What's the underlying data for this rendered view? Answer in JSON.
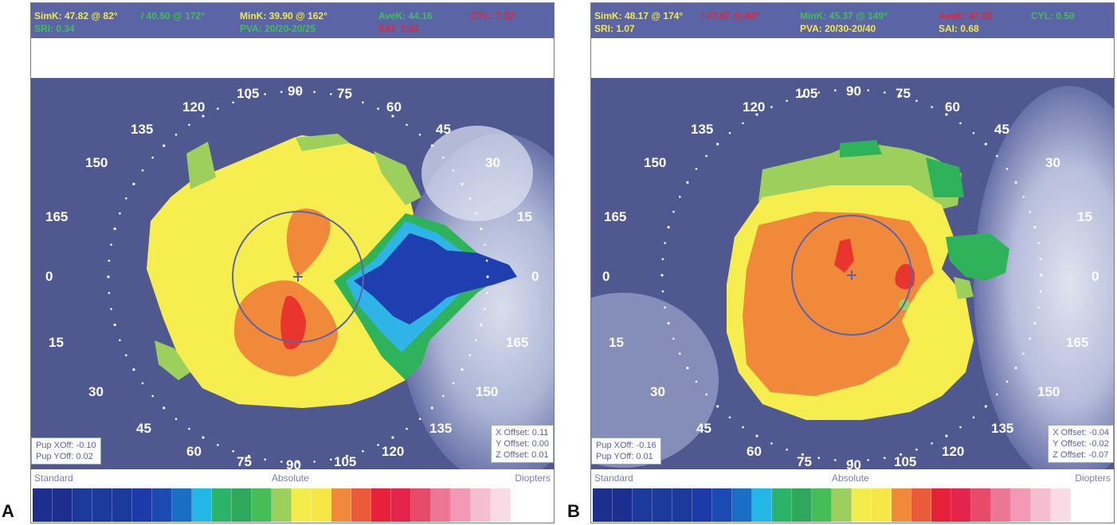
{
  "panels": [
    {
      "letter": "A",
      "header": {
        "simk": "SimK: 47.82 @ 82°",
        "simk_steep": "/ 40.50 @ 172°",
        "mink": "MinK: 39.90 @ 162°",
        "avek": "AveK: 44.16",
        "cyl": "CYL: 7.32",
        "sri": "SRI: 0.34",
        "pva": "PVA: 20/20-20/25",
        "sai": "SAI: 1.54"
      },
      "degree_labels": [
        "0",
        "15",
        "30",
        "45",
        "60",
        "75",
        "90",
        "105",
        "120",
        "135",
        "150",
        "165"
      ],
      "pupil_offset": {
        "x": "Pup XOff: -0.10",
        "y": "Pup YOff: 0.02"
      },
      "offsets": {
        "x": "X Offset: 0.11",
        "y": "Y Offset: 0.00",
        "z": "Z Offset: 0.01"
      },
      "scale": {
        "left": "Standard",
        "center": "Absolute",
        "right": "Diopters"
      }
    },
    {
      "letter": "B",
      "header": {
        "simk": "SimK: 48.17 @ 174°",
        "simk_steep": "/ 47.67 @ 84°",
        "mink": "MinK: 45.37 @ 149°",
        "avek": "AveK: 47.92",
        "cyl": "CYL: 0.50",
        "sri": "SRI: 1.07",
        "pva": "PVA: 20/30-20/40",
        "sai": "SAI: 0.68"
      },
      "degree_labels": [
        "0",
        "15",
        "30",
        "45",
        "60",
        "75",
        "90",
        "105",
        "120",
        "135",
        "150",
        "165"
      ],
      "pupil_offset": {
        "x": "Pup XOff: -0.16",
        "y": "Pup YOff: 0.01"
      },
      "offsets": {
        "x": "X Offset: -0.04",
        "y": "Y Offset: -0.02",
        "z": "Z Offset: -0.07"
      },
      "scale": {
        "left": "Standard",
        "center": "Absolute",
        "right": "Diopters"
      }
    }
  ],
  "colors": {
    "background_eye": "#4f588f",
    "header_bg": "#5b64a4",
    "yellow": "#f5ee4e",
    "orange": "#f08a3a",
    "red": "#e8352e",
    "lightgreen": "#9ccf5b",
    "green": "#2fb35a",
    "blue": "#1f3fb0",
    "cyan": "#2eb4e6"
  },
  "color_scale": [
    "#1c2f8f",
    "#1c2f8f",
    "#1c3a9c",
    "#1c3a9c",
    "#1c3a9c",
    "#1c3aa8",
    "#1c4ab5",
    "#1a6fc5",
    "#23b7e6",
    "#2bb36a",
    "#2fa85b",
    "#46be57",
    "#9ccf5b",
    "#f3ec4a",
    "#f6e646",
    "#f08a3a",
    "#ec5a3c",
    "#e6213a",
    "#e4244a",
    "#e84a6a",
    "#ec7795",
    "#f29ab5",
    "#f5bdd0",
    "#f9dbe6",
    "#ffffff"
  ]
}
